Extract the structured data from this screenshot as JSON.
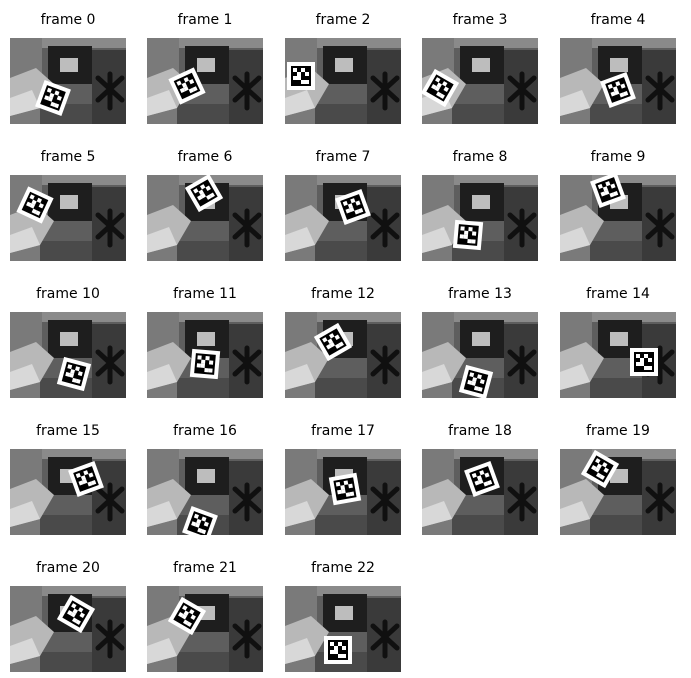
{
  "figure": {
    "frames": [
      {
        "label": "frame 0",
        "marker_angle": 20
      },
      {
        "label": "frame 1",
        "marker_angle": -25
      },
      {
        "label": "frame 2",
        "marker_angle": 0
      },
      {
        "label": "frame 3",
        "marker_angle": 30
      },
      {
        "label": "frame 4",
        "marker_angle": -20
      },
      {
        "label": "frame 5",
        "marker_angle": 25
      },
      {
        "label": "frame 6",
        "marker_angle": -30
      },
      {
        "label": "frame 7",
        "marker_angle": -20
      },
      {
        "label": "frame 8",
        "marker_angle": 5
      },
      {
        "label": "frame 9",
        "marker_angle": -20
      },
      {
        "label": "frame 10",
        "marker_angle": 15
      },
      {
        "label": "frame 11",
        "marker_angle": 5
      },
      {
        "label": "frame 12",
        "marker_angle": -30
      },
      {
        "label": "frame 13",
        "marker_angle": 15
      },
      {
        "label": "frame 14",
        "marker_angle": 0
      },
      {
        "label": "frame 15",
        "marker_angle": -20
      },
      {
        "label": "frame 16",
        "marker_angle": 20
      },
      {
        "label": "frame 17",
        "marker_angle": -10
      },
      {
        "label": "frame 18",
        "marker_angle": -20
      },
      {
        "label": "frame 19",
        "marker_angle": 30
      },
      {
        "label": "frame 20",
        "marker_angle": 30
      },
      {
        "label": "frame 21",
        "marker_angle": 30
      },
      {
        "label": "frame 22",
        "marker_angle": 0
      }
    ]
  }
}
